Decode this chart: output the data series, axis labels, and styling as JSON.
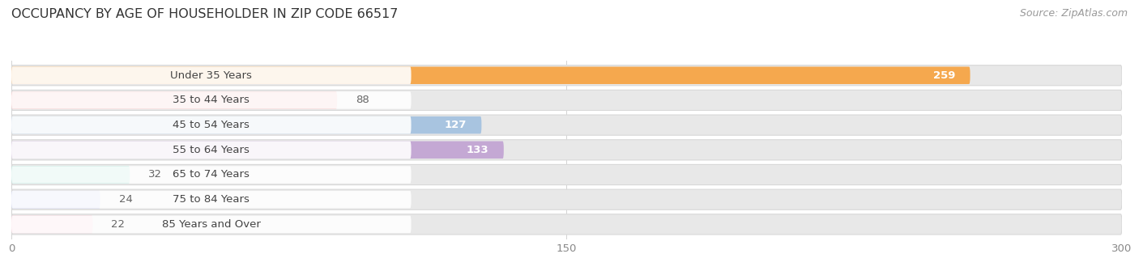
{
  "title": "OCCUPANCY BY AGE OF HOUSEHOLDER IN ZIP CODE 66517",
  "source": "Source: ZipAtlas.com",
  "categories": [
    "Under 35 Years",
    "35 to 44 Years",
    "45 to 54 Years",
    "55 to 64 Years",
    "65 to 74 Years",
    "75 to 84 Years",
    "85 Years and Over"
  ],
  "values": [
    259,
    88,
    127,
    133,
    32,
    24,
    22
  ],
  "bar_colors": [
    "#f5a84e",
    "#f4a0a0",
    "#a8c4e0",
    "#c4a8d4",
    "#7dcfc0",
    "#b8c0f0",
    "#f8b8c8"
  ],
  "bar_bg_color": "#e8e8e8",
  "row_bg_color": "#f5f5f5",
  "xlim_max": 300,
  "xticks": [
    0,
    150,
    300
  ],
  "title_fontsize": 11.5,
  "label_fontsize": 9.5,
  "value_fontsize": 9.5,
  "source_fontsize": 9,
  "background_color": "#ffffff"
}
